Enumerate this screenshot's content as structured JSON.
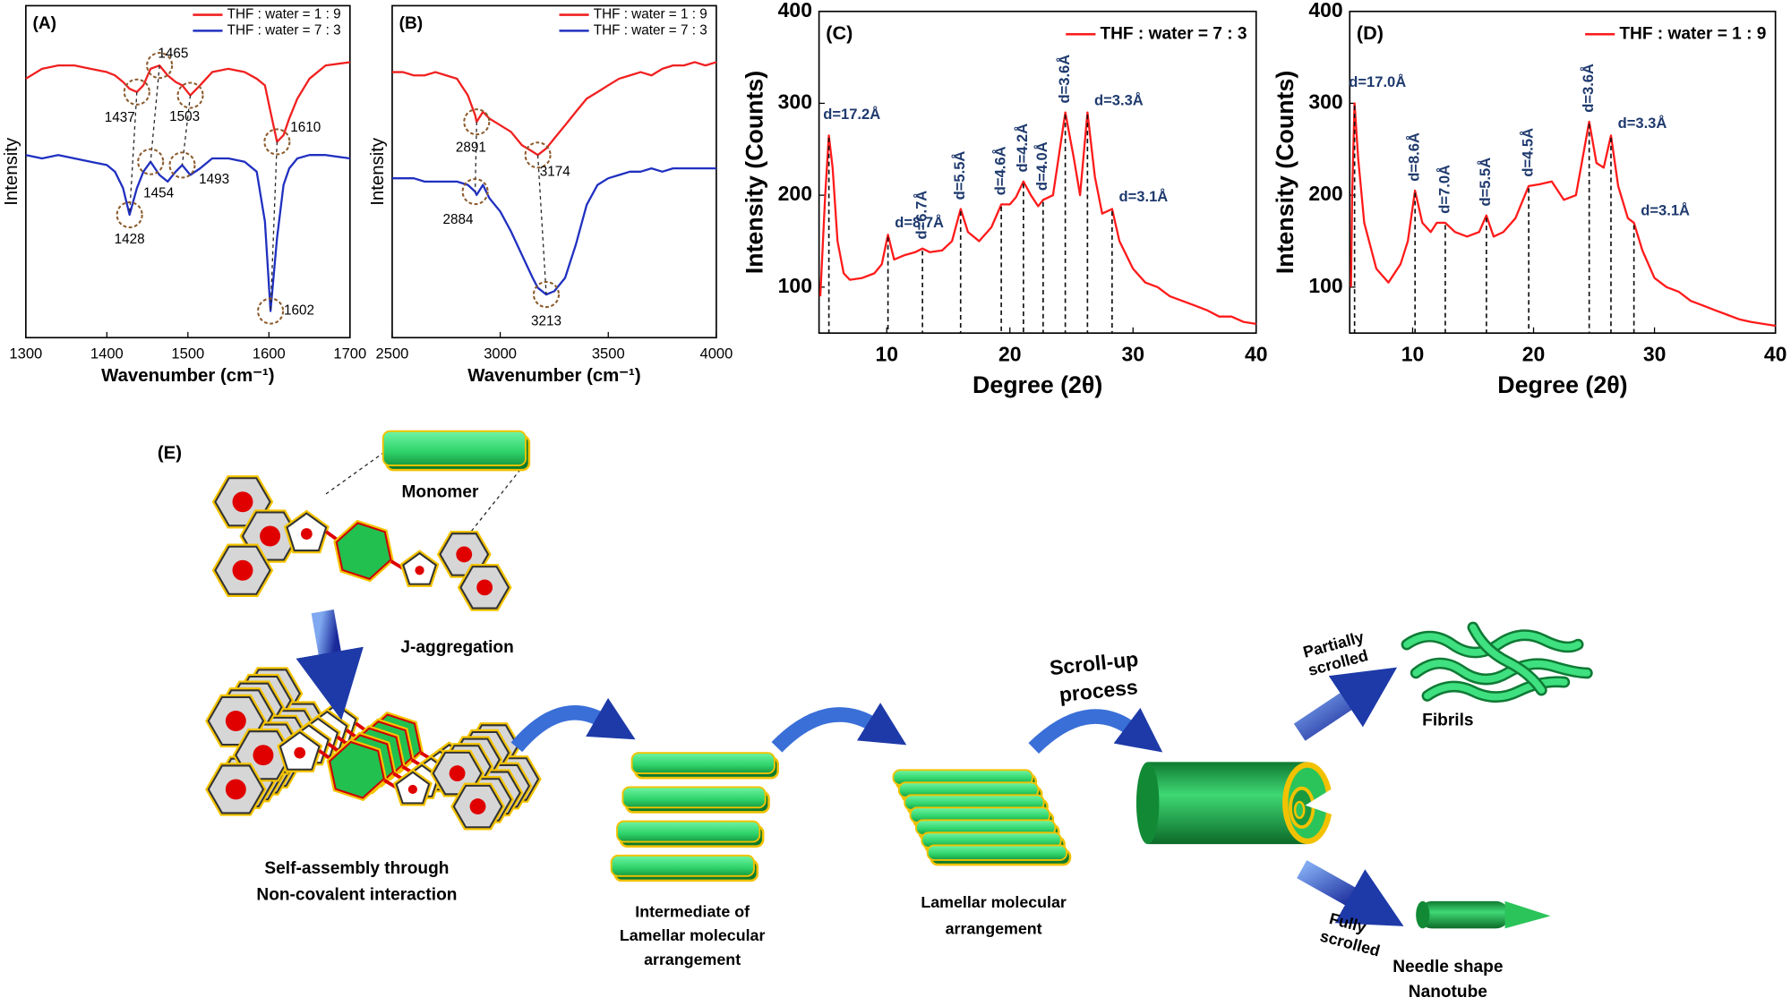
{
  "chart_data": [
    {
      "type": "line",
      "label": "(A)",
      "xlabel": "Wavenumber (cm⁻¹)",
      "ylabel": "Intensity",
      "xlim": [
        1300,
        1700
      ],
      "xticks": [
        1300,
        1400,
        1500,
        1600,
        1700
      ],
      "ylim": [
        0,
        100
      ],
      "legend": "upper right",
      "x": [
        1300,
        1320,
        1340,
        1360,
        1380,
        1400,
        1410,
        1420,
        1428,
        1437,
        1445,
        1454,
        1465,
        1475,
        1485,
        1493,
        1503,
        1515,
        1530,
        1550,
        1570,
        1585,
        1595,
        1602,
        1610,
        1618,
        1625,
        1635,
        1650,
        1670,
        1700
      ],
      "series": [
        {
          "name": "THF : water = 1 : 9",
          "color": "#f02020",
          "values": [
            78,
            81,
            82,
            82,
            81,
            80,
            79,
            77,
            75,
            74,
            76,
            81,
            82,
            79,
            77,
            76,
            73,
            76,
            80,
            81,
            80,
            78,
            76,
            68,
            59,
            61,
            66,
            72,
            78,
            82,
            83
          ],
          "peaks": [
            {
              "x": 1437,
              "y": 74
            },
            {
              "x": 1465,
              "y": 82
            },
            {
              "x": 1503,
              "y": 73
            },
            {
              "x": 1610,
              "y": 59
            }
          ]
        },
        {
          "name": "THF : water = 7 : 3",
          "color": "#2030c0",
          "values": [
            55,
            54,
            55,
            54,
            53,
            52,
            50,
            45,
            37,
            45,
            50,
            53,
            49,
            47,
            50,
            52,
            49,
            51,
            54,
            54,
            53,
            50,
            35,
            8,
            30,
            46,
            51,
            54,
            55,
            55,
            54
          ],
          "peaks": [
            {
              "x": 1428,
              "y": 37
            },
            {
              "x": 1454,
              "y": 53
            },
            {
              "x": 1493,
              "y": 52
            },
            {
              "x": 1602,
              "y": 8
            }
          ]
        }
      ]
    },
    {
      "type": "line",
      "label": "(B)",
      "xlabel": "Wavenumber (cm⁻¹)",
      "ylabel": "Intensity",
      "xlim": [
        2500,
        4000
      ],
      "xticks": [
        2500,
        3000,
        3500,
        4000
      ],
      "ylim": [
        0,
        100
      ],
      "legend": "upper right",
      "x": [
        2500,
        2550,
        2600,
        2650,
        2700,
        2750,
        2800,
        2850,
        2884,
        2891,
        2920,
        2950,
        3000,
        3050,
        3100,
        3150,
        3174,
        3213,
        3250,
        3300,
        3350,
        3400,
        3450,
        3500,
        3550,
        3600,
        3650,
        3700,
        3750,
        3800,
        3850,
        3900,
        3950,
        4000
      ],
      "series": [
        {
          "name": "THF : water = 1 : 9",
          "color": "#f02020",
          "values": [
            80,
            80,
            79,
            79,
            80,
            79,
            78,
            73,
            67,
            65,
            68,
            66,
            64,
            62,
            58,
            56,
            55,
            57,
            60,
            64,
            68,
            72,
            74,
            76,
            78,
            79,
            80,
            79,
            81,
            82,
            82,
            83,
            82,
            83
          ],
          "peaks": [
            {
              "x": 2891,
              "y": 65
            },
            {
              "x": 3174,
              "y": 55
            }
          ]
        },
        {
          "name": "THF : water = 7 : 3",
          "color": "#2030c0",
          "values": [
            48,
            48,
            48,
            47,
            47,
            47,
            47,
            46,
            44,
            43,
            46,
            42,
            38,
            32,
            25,
            18,
            15,
            13,
            14,
            18,
            28,
            40,
            46,
            48,
            49,
            50,
            50,
            51,
            50,
            51,
            51,
            51,
            51,
            51
          ],
          "peaks": [
            {
              "x": 2884,
              "y": 44
            },
            {
              "x": 3213,
              "y": 13
            }
          ]
        }
      ]
    },
    {
      "type": "line",
      "label": "(C)",
      "xlabel": "Degree (2θ)",
      "ylabel": "Intensity (Counts)",
      "xlim": [
        4.5,
        40
      ],
      "xticks": [
        10,
        20,
        30,
        40
      ],
      "ylim": [
        50,
        400
      ],
      "yticks": [
        100,
        200,
        300,
        400
      ],
      "legend": "upper right",
      "x": [
        4.6,
        5.0,
        5.3,
        5.6,
        6.0,
        6.5,
        7,
        8,
        9,
        9.6,
        10.1,
        10.6,
        11.5,
        12.3,
        12.9,
        13.5,
        14.5,
        15.3,
        16,
        16.6,
        17.5,
        18.5,
        19.3,
        20,
        20.5,
        21.1,
        21.7,
        22.3,
        22.7,
        23.5,
        24.5,
        25.2,
        25.7,
        26.3,
        26.9,
        27.5,
        28.3,
        28.9,
        30,
        31,
        32,
        33,
        34,
        35,
        36,
        37,
        38,
        39,
        40
      ],
      "series": [
        {
          "name": "THF : water = 7 : 3",
          "color": "#ff1a1a",
          "values": [
            90,
            200,
            265,
            230,
            150,
            115,
            108,
            110,
            115,
            125,
            157,
            130,
            135,
            138,
            142,
            138,
            140,
            150,
            185,
            160,
            150,
            165,
            190,
            190,
            198,
            215,
            200,
            188,
            195,
            200,
            290,
            240,
            200,
            290,
            220,
            180,
            185,
            150,
            120,
            105,
            100,
            90,
            85,
            80,
            75,
            68,
            68,
            62,
            60
          ],
          "peaks": [
            {
              "x": 5.3,
              "y": 265,
              "label": "d=17.2Å"
            },
            {
              "x": 10.1,
              "y": 157,
              "label": "d=8.7Å"
            },
            {
              "x": 12.9,
              "y": 142,
              "label": "d=6.7Å"
            },
            {
              "x": 16,
              "y": 185,
              "label": "d=5.5Å"
            },
            {
              "x": 19.3,
              "y": 190,
              "label": "d=4.6Å"
            },
            {
              "x": 21.1,
              "y": 215,
              "label": "d=4.2Å"
            },
            {
              "x": 22.7,
              "y": 195,
              "label": "d=4.0Å"
            },
            {
              "x": 24.5,
              "y": 290,
              "label": "d=3.6Å"
            },
            {
              "x": 26.3,
              "y": 290,
              "label": "d=3.3Å"
            },
            {
              "x": 28.3,
              "y": 185,
              "label": "d=3.1Å"
            }
          ]
        }
      ]
    },
    {
      "type": "line",
      "label": "(D)",
      "xlabel": "Degree (2θ)",
      "ylabel": "Intensity (Counts)",
      "xlim": [
        4.8,
        40
      ],
      "xticks": [
        10,
        20,
        30,
        40
      ],
      "ylim": [
        50,
        400
      ],
      "yticks": [
        100,
        200,
        300,
        400
      ],
      "legend": "upper right",
      "x": [
        4.9,
        5.0,
        5.2,
        5.5,
        6,
        7,
        8,
        9,
        9.6,
        10.2,
        10.8,
        11.5,
        12,
        12.7,
        13.5,
        14.5,
        15.5,
        16.1,
        16.7,
        17.5,
        18.5,
        19.6,
        20.5,
        21.5,
        22.5,
        23.5,
        24.6,
        25.2,
        25.8,
        26.4,
        27,
        27.8,
        28.3,
        29,
        30,
        31,
        32,
        33,
        34,
        35,
        36,
        37,
        38,
        39,
        40
      ],
      "series": [
        {
          "name": "THF : water = 1 : 9",
          "color": "#ff1a1a",
          "values": [
            100,
            200,
            300,
            240,
            170,
            120,
            105,
            125,
            150,
            205,
            170,
            160,
            170,
            170,
            160,
            155,
            160,
            178,
            155,
            160,
            175,
            210,
            212,
            215,
            195,
            200,
            280,
            235,
            230,
            265,
            210,
            175,
            170,
            140,
            110,
            100,
            95,
            85,
            80,
            75,
            70,
            65,
            62,
            60,
            58
          ],
          "peaks": [
            {
              "x": 5.2,
              "y": 300,
              "label": "d=17.0Å"
            },
            {
              "x": 10.2,
              "y": 205,
              "label": "d=8.6Å"
            },
            {
              "x": 12.7,
              "y": 170,
              "label": "d=7.0Å"
            },
            {
              "x": 16.1,
              "y": 178,
              "label": "d=5.5Å"
            },
            {
              "x": 19.6,
              "y": 210,
              "label": "d=4.5Å"
            },
            {
              "x": 24.6,
              "y": 280,
              "label": "d=3.6Å"
            },
            {
              "x": 26.4,
              "y": 265,
              "label": "d=3.3Å"
            },
            {
              "x": 28.3,
              "y": 170,
              "label": "d=3.1Å"
            }
          ]
        }
      ]
    }
  ],
  "diagram": {
    "label": "(E)",
    "monomer": "Monomer",
    "j_aggregation": "J-aggregation",
    "self_assembly": [
      "Self-assembly through",
      "Non-covalent interaction"
    ],
    "intermediate": [
      "Intermediate of",
      "Lamellar molecular",
      "arrangement"
    ],
    "lamellar": [
      "Lamellar molecular",
      "arrangement"
    ],
    "scroll_up": [
      "Scroll-up",
      "process"
    ],
    "partial": [
      "Partially",
      "scrolled"
    ],
    "fibrils": "Fibrils",
    "full": [
      "Fully",
      "scrolled"
    ],
    "nanotube": [
      "Needle shape",
      "Nanotube"
    ]
  }
}
